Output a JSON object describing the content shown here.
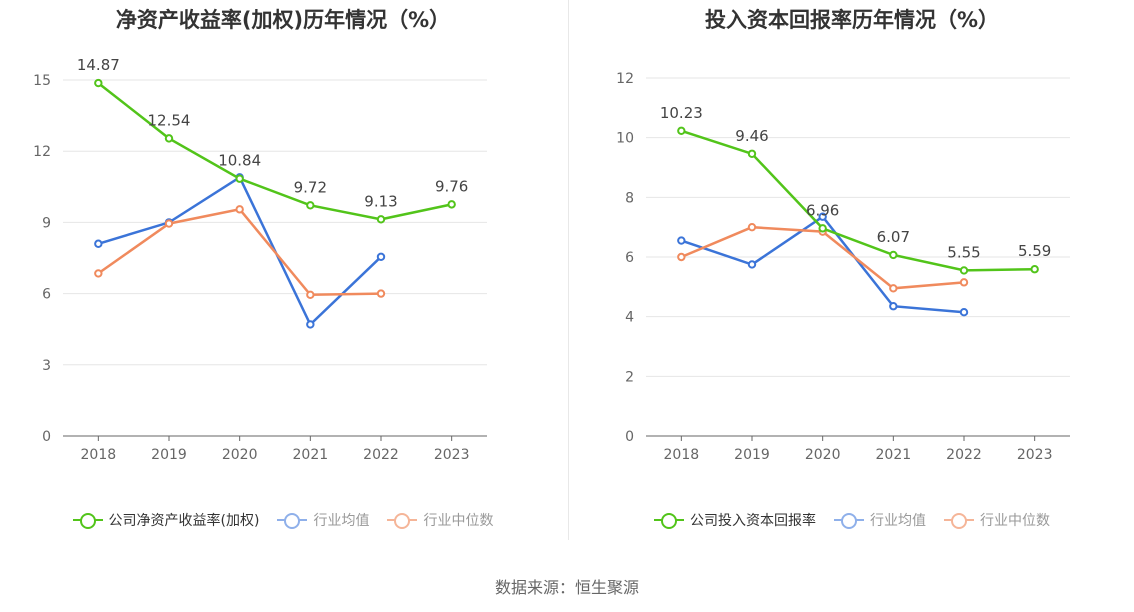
{
  "charts": [
    {
      "title": "净资产收益率(加权)历年情况（%）",
      "legend": [
        "公司净资产收益率(加权)",
        "行业均值",
        "行业中位数"
      ]
    },
    {
      "title": "投入资本回报率历年情况（%）",
      "legend": [
        "公司投入资本回报率",
        "行业均值",
        "行业中位数"
      ]
    }
  ],
  "source": "数据来源：恒生聚源",
  "colors": {
    "company": "#52c41a",
    "avg": "#3b74d8",
    "median": "#f08a5d"
  },
  "chart_data": [
    {
      "type": "line",
      "title": "净资产收益率(加权)历年情况（%）",
      "categories": [
        "2018",
        "2019",
        "2020",
        "2021",
        "2022",
        "2023"
      ],
      "ylim": [
        0,
        15
      ],
      "yticks": [
        0,
        3,
        6,
        9,
        12,
        15
      ],
      "grid": true,
      "legend_position": "bottom",
      "series": [
        {
          "name": "公司净资产收益率(加权)",
          "color": "#52c41a",
          "labels": true,
          "values": [
            14.87,
            12.54,
            10.84,
            9.72,
            9.13,
            9.76
          ]
        },
        {
          "name": "行业均值",
          "color": "#3b74d8",
          "labels": false,
          "values": [
            8.1,
            9.0,
            10.9,
            4.7,
            7.55,
            null
          ]
        },
        {
          "name": "行业中位数",
          "color": "#f08a5d",
          "labels": false,
          "values": [
            6.85,
            8.95,
            9.55,
            5.95,
            6.0,
            null
          ]
        }
      ]
    },
    {
      "type": "line",
      "title": "投入资本回报率历年情况（%）",
      "categories": [
        "2018",
        "2019",
        "2020",
        "2021",
        "2022",
        "2023"
      ],
      "ylim": [
        0,
        12
      ],
      "yticks": [
        0,
        2,
        4,
        6,
        8,
        10,
        12
      ],
      "grid": true,
      "legend_position": "bottom",
      "series": [
        {
          "name": "公司投入资本回报率",
          "color": "#52c41a",
          "labels": true,
          "values": [
            10.23,
            9.46,
            6.96,
            6.07,
            5.55,
            5.59
          ]
        },
        {
          "name": "行业均值",
          "color": "#3b74d8",
          "labels": false,
          "values": [
            6.55,
            5.75,
            7.35,
            4.35,
            4.15,
            null
          ]
        },
        {
          "name": "行业中位数",
          "color": "#f08a5d",
          "labels": false,
          "values": [
            6.0,
            7.0,
            6.85,
            4.95,
            5.15,
            null
          ]
        }
      ]
    }
  ]
}
